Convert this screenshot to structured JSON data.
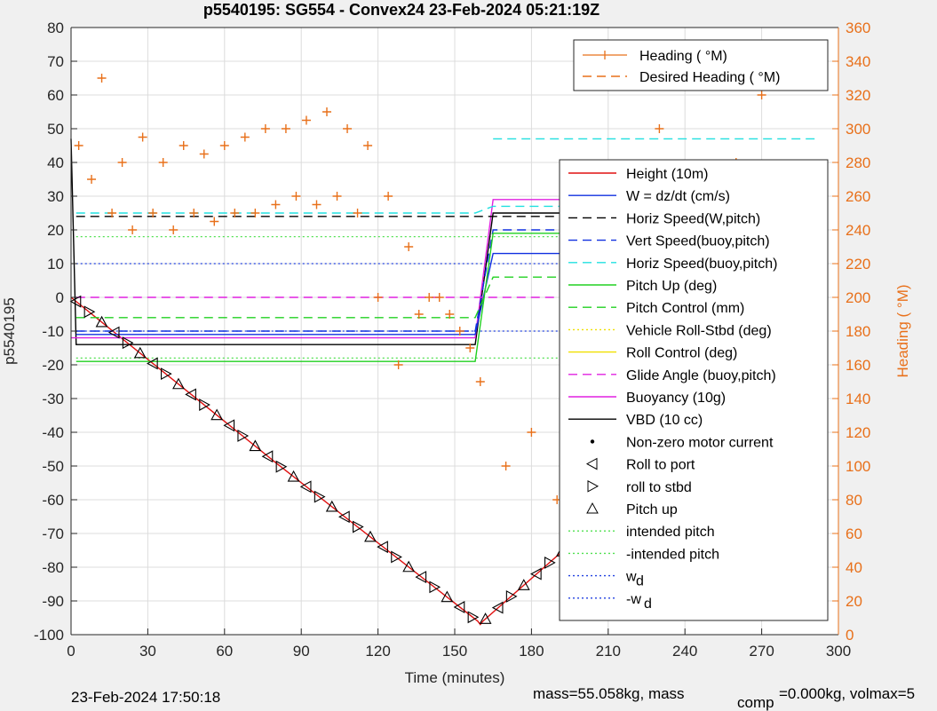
{
  "chart_data": {
    "type": "line",
    "title": "p5540195: SG554 - Convex24 23-Feb-2024 05:21:19Z",
    "xlabel": "Time (minutes)",
    "ylabel": "p5540195",
    "ylabel_right": "Heading (  °M)",
    "xlim": [
      0,
      300
    ],
    "ylim": [
      -100,
      80
    ],
    "ylim_right": [
      0,
      360
    ],
    "x_ticks": [
      "0",
      "30",
      "60",
      "90",
      "120",
      "150",
      "180",
      "210",
      "240",
      "270",
      "300"
    ],
    "y_ticks": [
      "80",
      "70",
      "60",
      "50",
      "40",
      "30",
      "20",
      "10",
      "0",
      "-10",
      "-20",
      "-30",
      "-40",
      "-50",
      "-60",
      "-70",
      "-80",
      "-90",
      "-100"
    ],
    "y_ticks_right": [
      "360",
      "340",
      "320",
      "300",
      "280",
      "260",
      "240",
      "220",
      "200",
      "180",
      "160",
      "140",
      "120",
      "100",
      "80",
      "60",
      "40",
      "20",
      "0"
    ],
    "grid": true,
    "legend_top": {
      "placement": "top-right",
      "entries": [
        {
          "label": "Heading (  °M)",
          "color": "#e8701a",
          "style": "plus"
        },
        {
          "label": "Desired Heading (   °M)",
          "color": "#e8701a",
          "style": "dash"
        }
      ]
    },
    "legend_main": {
      "placement": "right",
      "entries": [
        {
          "label": "Height (10m)",
          "color": "#e01010",
          "style": "solid"
        },
        {
          "label": "W = dz/dt (cm/s)",
          "color": "#1030e0",
          "style": "solid"
        },
        {
          "label": "Horiz Speed(W,pitch)",
          "color": "#000000",
          "style": "dash"
        },
        {
          "label": "Vert Speed(buoy,pitch)",
          "color": "#1030e0",
          "style": "dash"
        },
        {
          "label": "Horiz Speed(buoy,pitch)",
          "color": "#20e0e0",
          "style": "dash"
        },
        {
          "label": "Pitch Up (deg)",
          "color": "#20d020",
          "style": "solid"
        },
        {
          "label": "Pitch Control (mm)",
          "color": "#20d020",
          "style": "dash"
        },
        {
          "label": "Vehicle Roll-Stbd (deg)",
          "color": "#f0e000",
          "style": "dot"
        },
        {
          "label": "Roll Control (deg)",
          "color": "#f0e000",
          "style": "solid"
        },
        {
          "label": "Glide Angle (buoy,pitch)",
          "color": "#e020e0",
          "style": "dash"
        },
        {
          "label": "Buoyancy (10g)",
          "color": "#e020e0",
          "style": "solid"
        },
        {
          "label": "VBD (10 cc)",
          "color": "#000000",
          "style": "solid"
        },
        {
          "label": "Non-zero motor current",
          "color": "#000000",
          "style": "point"
        },
        {
          "label": "Roll to port",
          "color": "#000000",
          "style": "tri-left"
        },
        {
          "label": "roll to stbd",
          "color": "#000000",
          "style": "tri-right"
        },
        {
          "label": "Pitch up",
          "color": "#000000",
          "style": "tri-up"
        },
        {
          "label": "intended pitch",
          "color": "#50e050",
          "style": "dot"
        },
        {
          "label": "-intended pitch",
          "color": "#50e050",
          "style": "dot"
        },
        {
          "label": "w",
          "sub": "d",
          "color": "#2040e0",
          "style": "dot"
        },
        {
          "label": "-w",
          "sub": "d",
          "color": "#2040e0",
          "style": "dot"
        }
      ]
    },
    "series": [
      {
        "name": "Height (10m)",
        "x": [
          0,
          80,
          159,
          160,
          161,
          200,
          260,
          292
        ],
        "y": [
          0,
          -49,
          -96,
          -97,
          -96,
          -70,
          -31,
          0
        ]
      },
      {
        "name": "VBD (10 cc)",
        "x": [
          0,
          2,
          158,
          165,
          295
        ],
        "y": [
          47,
          -14,
          -14,
          25,
          25
        ]
      },
      {
        "name": "Buoyancy (10g)",
        "x": [
          0,
          158,
          165,
          292
        ],
        "y": [
          -12,
          -12,
          29,
          29
        ]
      },
      {
        "name": "W = dz/dt (cm/s)",
        "x": [
          2,
          30,
          60,
          90,
          120,
          158,
          165,
          200,
          240,
          292
        ],
        "y": [
          -11,
          -11,
          -11,
          -11,
          -11,
          -11,
          13,
          13,
          13,
          13
        ]
      },
      {
        "name": "Horiz Speed(buoy,pitch)",
        "x": [
          2,
          30,
          60,
          90,
          120,
          158,
          165,
          200,
          240,
          292
        ],
        "y": [
          25,
          25,
          25,
          25,
          25,
          25,
          27,
          27,
          27,
          27
        ]
      },
      {
        "name": "Horiz Speed(W,pitch)",
        "x": [
          2,
          158,
          165,
          292
        ],
        "y": [
          24,
          24,
          24,
          24
        ]
      },
      {
        "name": "Vert Speed(buoy,pitch)",
        "x": [
          2,
          158,
          165,
          292
        ],
        "y": [
          -10,
          -10,
          20,
          20
        ]
      },
      {
        "name": "Pitch Up (deg)",
        "x": [
          2,
          30,
          60,
          90,
          120,
          158,
          165,
          200,
          240,
          292
        ],
        "y": [
          -19,
          -19,
          -19,
          -19,
          -19,
          -19,
          19,
          19,
          19,
          19
        ]
      },
      {
        "name": "Pitch Control (mm)",
        "x": [
          2,
          158,
          165,
          292
        ],
        "y": [
          -6,
          -6,
          6,
          6
        ]
      },
      {
        "name": "Glide Angle (buoy,pitch)",
        "x": [
          2,
          158,
          165,
          292
        ],
        "y": [
          0,
          0,
          0,
          0
        ]
      },
      {
        "name": "Horiz Speed(buoy,pitch) upper",
        "x": [
          165,
          200,
          240,
          292
        ],
        "y": [
          47,
          47,
          47,
          47
        ]
      }
    ],
    "reference_lines": [
      {
        "name": "intended pitch",
        "y": 18
      },
      {
        "name": "-intended pitch",
        "y": -18
      },
      {
        "name": "w_d",
        "y": 10
      },
      {
        "name": "-w_d",
        "y": -10
      }
    ],
    "heading_samples_right_axis": {
      "x": [
        3,
        8,
        12,
        16,
        20,
        24,
        28,
        32,
        36,
        40,
        44,
        48,
        52,
        56,
        60,
        64,
        68,
        72,
        76,
        80,
        84,
        88,
        92,
        96,
        100,
        104,
        108,
        112,
        116,
        120,
        124,
        128,
        132,
        136,
        140,
        144,
        148,
        152,
        156,
        160,
        170,
        180,
        190,
        200,
        210,
        220,
        230,
        240,
        250,
        260,
        270,
        280,
        290
      ],
      "y": [
        290,
        270,
        330,
        250,
        280,
        240,
        295,
        250,
        280,
        240,
        290,
        250,
        285,
        245,
        290,
        250,
        295,
        250,
        300,
        255,
        300,
        260,
        305,
        255,
        310,
        260,
        300,
        250,
        290,
        200,
        260,
        160,
        230,
        190,
        200,
        200,
        190,
        180,
        170,
        150,
        100,
        120,
        80,
        120,
        180,
        240,
        300,
        260,
        220,
        280,
        320,
        260,
        330
      ]
    }
  },
  "footer": {
    "timestamp": "23-Feb-2024 17:50:18",
    "mass_text": "mass=55.058kg, mass",
    "comp_sub": "comp",
    "comp_text": "=0.000kg, volmax=5"
  },
  "colors": {
    "heading": "#e8701a",
    "axis": "#262626",
    "grid": "#dcdcdc"
  }
}
